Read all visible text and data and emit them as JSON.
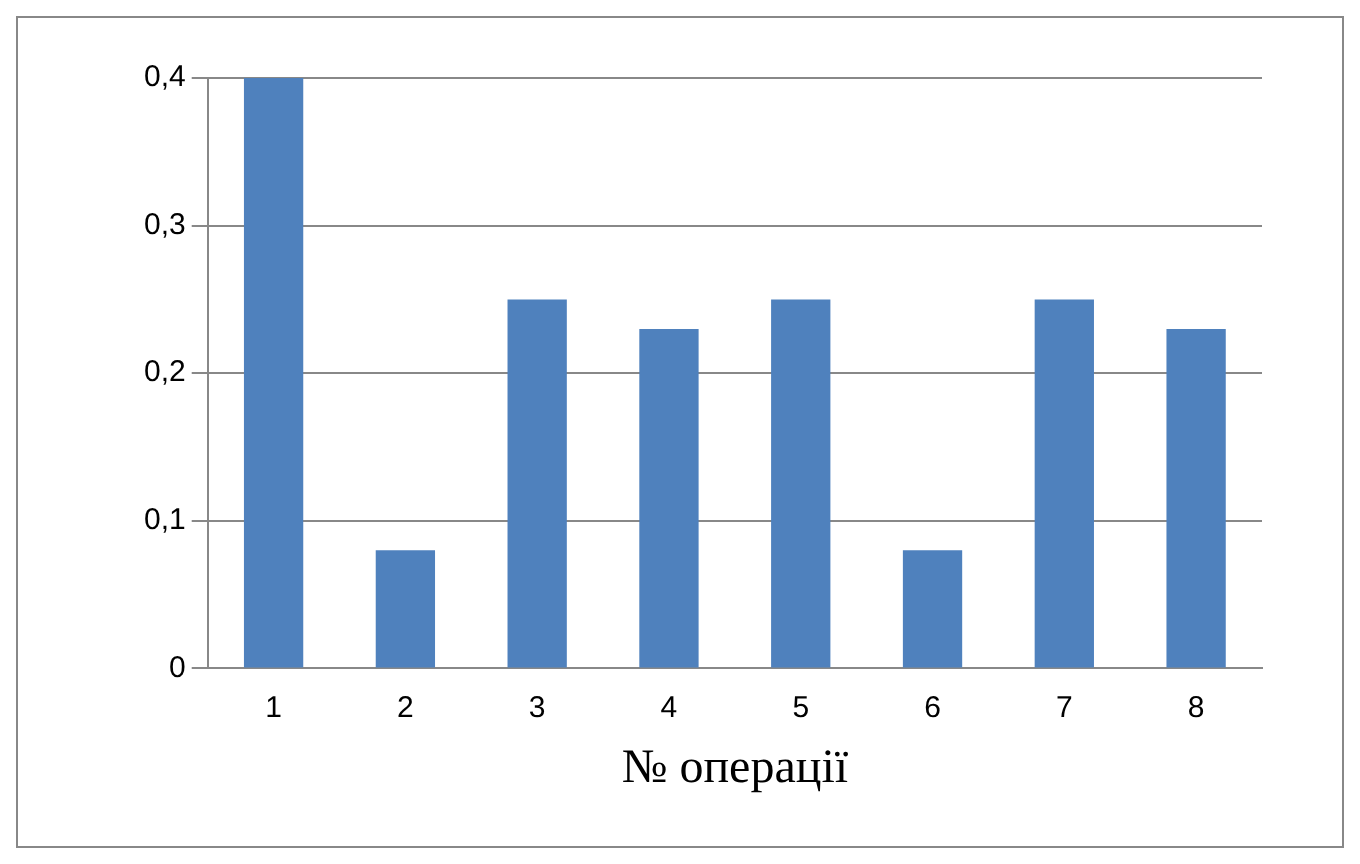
{
  "chart_data": {
    "type": "bar",
    "xlabel": "№ операції",
    "categories": [
      "1",
      "2",
      "3",
      "4",
      "5",
      "6",
      "7",
      "8"
    ],
    "values": [
      0.4,
      0.08,
      0.25,
      0.23,
      0.25,
      0.08,
      0.25,
      0.23
    ],
    "color": "#4f81bd",
    "ylim": [
      0,
      0.4
    ],
    "yticks": [
      0,
      {
        "value": 0.1,
        "label": "0,1"
      },
      {
        "value": 0.2,
        "label": "0,2"
      },
      {
        "value": 0.3,
        "label": "0,3"
      },
      {
        "value": 0.4,
        "label": "0,4"
      }
    ],
    "grid": "y"
  }
}
